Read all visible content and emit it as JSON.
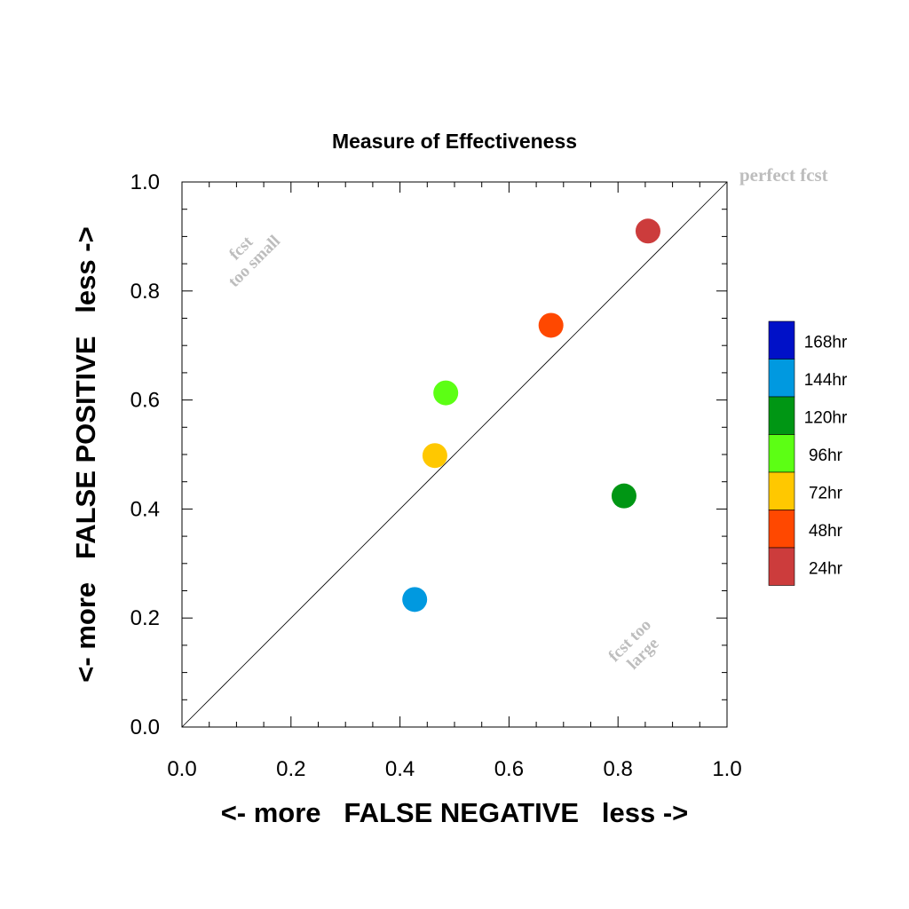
{
  "chart_data": {
    "type": "scatter",
    "title": "Measure of Effectiveness",
    "xlabel": "<- more   FALSE NEGATIVE   less ->",
    "ylabel": "<- more   FALSE POSITIVE   less ->",
    "xlim": [
      0.0,
      1.0
    ],
    "ylim": [
      0.0,
      1.0
    ],
    "xticks": [
      "0.0",
      "0.2",
      "0.4",
      "0.6",
      "0.8",
      "1.0"
    ],
    "yticks": [
      "0.0",
      "0.2",
      "0.4",
      "0.6",
      "0.8",
      "1.0"
    ],
    "grid": false,
    "reference_line": {
      "from": [
        0.0,
        0.0
      ],
      "to": [
        1.0,
        1.0
      ]
    },
    "annotations": {
      "perfect": "perfect fcst",
      "too_small": [
        "fcst",
        "too small"
      ],
      "too_large": [
        "fcst too",
        "large"
      ]
    },
    "legend": {
      "placement": "right",
      "entries": [
        {
          "label": "168hr",
          "color": "#0011c8"
        },
        {
          "label": "144hr",
          "color": "#0099e0"
        },
        {
          "label": "120hr",
          "color": "#009614"
        },
        {
          "label": "96hr",
          "color": "#5cff14"
        },
        {
          "label": "72hr",
          "color": "#ffc800"
        },
        {
          "label": "48hr",
          "color": "#ff4800"
        },
        {
          "label": "24hr",
          "color": "#cc3c3c"
        }
      ]
    },
    "points": [
      {
        "series": "24hr",
        "x": 0.855,
        "y": 0.91,
        "color": "#cc3c3c"
      },
      {
        "series": "48hr",
        "x": 0.677,
        "y": 0.737,
        "color": "#ff4800"
      },
      {
        "series": "72hr",
        "x": 0.464,
        "y": 0.498,
        "color": "#ffc800"
      },
      {
        "series": "96hr",
        "x": 0.484,
        "y": 0.613,
        "color": "#5cff14"
      },
      {
        "series": "120hr",
        "x": 0.811,
        "y": 0.424,
        "color": "#009614"
      },
      {
        "series": "144hr",
        "x": 0.427,
        "y": 0.234,
        "color": "#0099e0"
      }
    ]
  }
}
